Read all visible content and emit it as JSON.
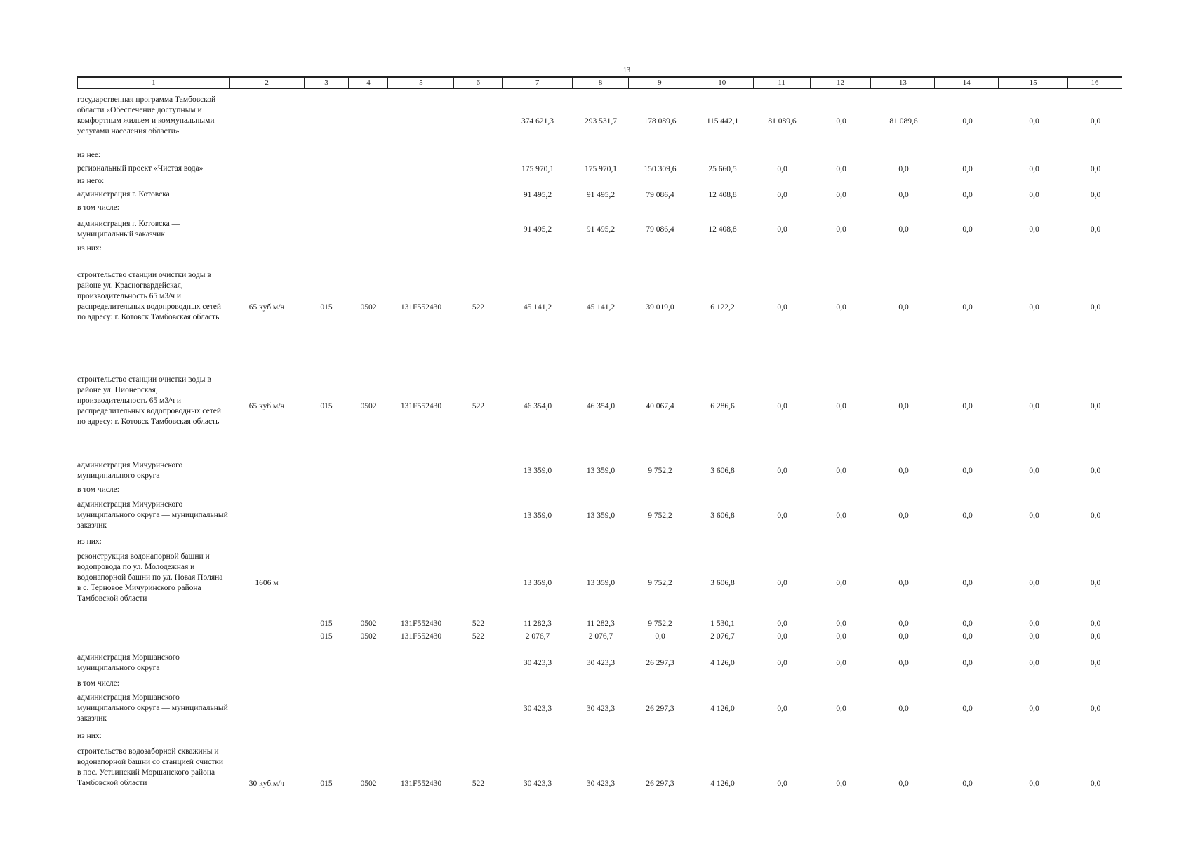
{
  "page_number": "13",
  "header": [
    "1",
    "2",
    "3",
    "4",
    "5",
    "6",
    "7",
    "8",
    "9",
    "10",
    "11",
    "12",
    "13",
    "14",
    "15",
    "16"
  ],
  "rows": [
    {
      "label": "государственная программа Тамбовской области «Обеспечение доступным и комфортным жильем и коммунальными услугами населения области»",
      "c2": "",
      "c3": "",
      "c4": "",
      "c5": "",
      "c6": "",
      "v": [
        "374 621,3",
        "293 531,7",
        "178 089,6",
        "115 442,1",
        "81 089,6",
        "0,0",
        "81 089,6",
        "0,0",
        "0,0",
        "0,0"
      ]
    },
    {
      "label": "из нее:"
    },
    {
      "label": "региональный проект «Чистая вода»",
      "v": [
        "175 970,1",
        "175 970,1",
        "150 309,6",
        "25 660,5",
        "0,0",
        "0,0",
        "0,0",
        "0,0",
        "0,0",
        "0,0"
      ]
    },
    {
      "label": "из него:"
    },
    {
      "label": "администрация г. Котовска",
      "v": [
        "91 495,2",
        "91 495,2",
        "79 086,4",
        "12 408,8",
        "0,0",
        "0,0",
        "0,0",
        "0,0",
        "0,0",
        "0,0"
      ]
    },
    {
      "label": "в том числе:"
    },
    {
      "label": "администрация г. Котовска — муниципальный заказчик",
      "v": [
        "91 495,2",
        "91 495,2",
        "79 086,4",
        "12 408,8",
        "0,0",
        "0,0",
        "0,0",
        "0,0",
        "0,0",
        "0,0"
      ]
    },
    {
      "label": "из них:"
    },
    {
      "label": "строительство станции очистки воды в районе ул. Красногвардейская, производительность 65 м3/ч и распределительных водопроводных сетей по адресу: г. Котовск Тамбовская область",
      "c2": "65 куб.м/ч",
      "c3": "015",
      "c4": "0502",
      "c5": "131F552430",
      "c6": "522",
      "v": [
        "45 141,2",
        "45 141,2",
        "39 019,0",
        "6 122,2",
        "0,0",
        "0,0",
        "0,0",
        "0,0",
        "0,0",
        "0,0"
      ]
    },
    {
      "label": "строительство станции очистки воды в районе ул. Пионерская, производительность 65 м3/ч и распределительных водопроводных сетей по адресу: г. Котовск Тамбовская область",
      "c2": "65 куб.м/ч",
      "c3": "015",
      "c4": "0502",
      "c5": "131F552430",
      "c6": "522",
      "v": [
        "46 354,0",
        "46 354,0",
        "40 067,4",
        "6 286,6",
        "0,0",
        "0,0",
        "0,0",
        "0,0",
        "0,0",
        "0,0"
      ]
    },
    {
      "label": "администрация Мичуринского муниципального округа",
      "v": [
        "13 359,0",
        "13 359,0",
        "9 752,2",
        "3 606,8",
        "0,0",
        "0,0",
        "0,0",
        "0,0",
        "0,0",
        "0,0"
      ]
    },
    {
      "label": "в том числе:"
    },
    {
      "label": "администрация Мичуринского муниципального округа — муниципальный заказчик",
      "v": [
        "13 359,0",
        "13 359,0",
        "9 752,2",
        "3 606,8",
        "0,0",
        "0,0",
        "0,0",
        "0,0",
        "0,0",
        "0,0"
      ]
    },
    {
      "label": "из них:"
    },
    {
      "label": "реконструкция водонапорной башни и водопровода по ул. Молодежная и водонапорной башни по ул. Новая Поляна в с. Терновое Мичуринского района Тамбовской области",
      "c2": "1606 м",
      "v": [
        "13 359,0",
        "13 359,0",
        "9 752,2",
        "3 606,8",
        "0,0",
        "0,0",
        "0,0",
        "0,0",
        "0,0",
        "0,0"
      ]
    },
    {
      "label": "",
      "c3": "015",
      "c4": "0502",
      "c5": "131F552430",
      "c6": "522",
      "v": [
        "11 282,3",
        "11 282,3",
        "9 752,2",
        "1 530,1",
        "0,0",
        "0,0",
        "0,0",
        "0,0",
        "0,0",
        "0,0"
      ]
    },
    {
      "label": "",
      "c3": "015",
      "c4": "0502",
      "c5": "131F552430",
      "c6": "522",
      "v": [
        "2 076,7",
        "2 076,7",
        "0,0",
        "2 076,7",
        "0,0",
        "0,0",
        "0,0",
        "0,0",
        "0,0",
        "0,0"
      ]
    },
    {
      "label": "администрация Моршанского муниципального округа",
      "v": [
        "30 423,3",
        "30 423,3",
        "26 297,3",
        "4 126,0",
        "0,0",
        "0,0",
        "0,0",
        "0,0",
        "0,0",
        "0,0"
      ]
    },
    {
      "label": "в том числе:"
    },
    {
      "label": "администрация Моршанского муниципального округа — муниципальный заказчик",
      "v": [
        "30 423,3",
        "30 423,3",
        "26 297,3",
        "4 126,0",
        "0,0",
        "0,0",
        "0,0",
        "0,0",
        "0,0",
        "0,0"
      ]
    },
    {
      "label": "из них:"
    },
    {
      "label": "строительство водозаборной скважины и водонапорной башни со станцией очистки в пос. Устьинский Моршанского района Тамбовской области",
      "c2": "30 куб.м/ч",
      "c3": "015",
      "c4": "0502",
      "c5": "131F552430",
      "c6": "522",
      "v": [
        "30 423,3",
        "30 423,3",
        "26 297,3",
        "4 126,0",
        "0,0",
        "0,0",
        "0,0",
        "0,0",
        "0,0",
        "0,0"
      ]
    }
  ]
}
